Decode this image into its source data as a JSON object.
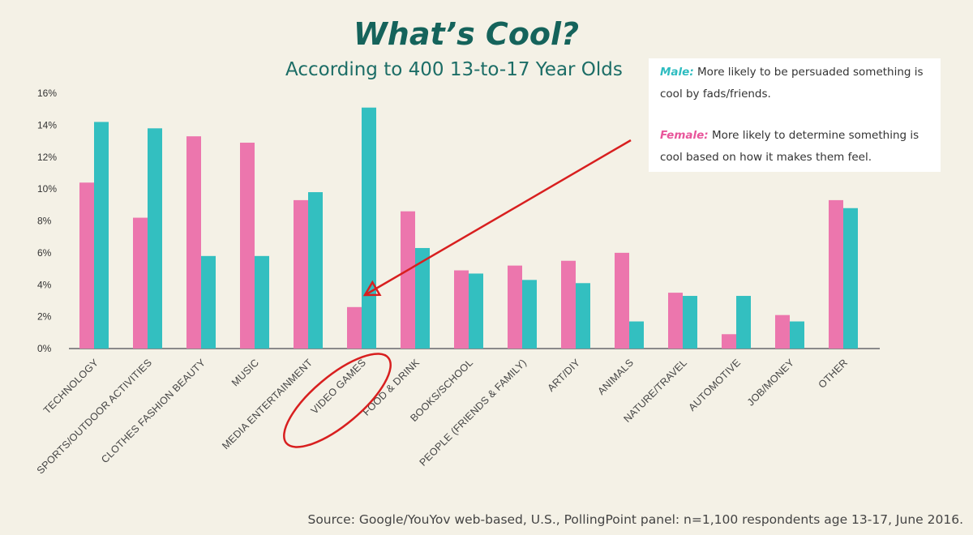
{
  "chart_data": {
    "type": "bar",
    "title": "What’s Cool?",
    "subtitle": "According to 400 13-to-17 Year Olds",
    "ylim": [
      0,
      16
    ],
    "yticks": [
      "0%",
      "2%",
      "4%",
      "6%",
      "8%",
      "10%",
      "12%",
      "14%",
      "16%"
    ],
    "ytick_values": [
      0,
      2,
      4,
      6,
      8,
      10,
      12,
      14,
      16
    ],
    "categories": [
      "TECHNOLOGY",
      "SPORTS/OUTDOOR ACTIVITIES",
      "CLOTHES FASHION BEAUTY",
      "MUSIC",
      "MEDIA ENTERTAINMENT",
      "VIDEO GAMES",
      "FOOD & DRINK",
      "BOOKS/SCHOOL",
      "PEOPLE (FRIENDS & FAMILY)",
      "ART/DIY",
      "ANIMALS",
      "NATURE/TRAVEL",
      "AUTOMOTIVE",
      "JOB/MONEY",
      "OTHER"
    ],
    "series": [
      {
        "name": "Female",
        "color": "#ec76ad",
        "values": [
          10.4,
          8.2,
          13.3,
          12.9,
          9.3,
          2.6,
          8.6,
          4.9,
          5.2,
          5.5,
          6.0,
          3.5,
          0.9,
          2.1,
          9.3
        ]
      },
      {
        "name": "Male",
        "color": "#33bfc0",
        "values": [
          14.2,
          13.8,
          5.8,
          5.8,
          9.8,
          15.1,
          6.3,
          4.7,
          4.3,
          4.1,
          1.7,
          3.3,
          3.3,
          1.7,
          8.8
        ]
      }
    ],
    "legend_notes": {
      "male_label": "Male:",
      "male_text": "More likely to be persuaded something is cool by fads/friends.",
      "female_label": "Female:",
      "female_text": "More likely to determine something is cool based on how it makes them feel."
    },
    "source": "Source: Google/YouYov web-based, U.S., PollingPoint panel: n=1,100 respondents age 13-17, June 2016.",
    "annotation": {
      "highlight_category": "VIDEO GAMES",
      "color": "#d81f1f"
    }
  }
}
